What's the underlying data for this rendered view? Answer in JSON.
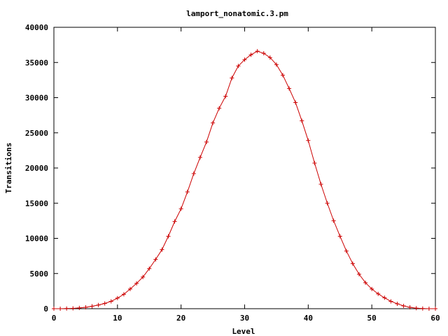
{
  "chart_data": {
    "type": "line",
    "title": "lamport_nonatomic.3.pm",
    "xlabel": "Level",
    "ylabel": "Transitions",
    "xlim": [
      0,
      60
    ],
    "ylim": [
      0,
      40000
    ],
    "x_ticks": [
      0,
      10,
      20,
      30,
      40,
      50,
      60
    ],
    "y_ticks": [
      0,
      5000,
      10000,
      15000,
      20000,
      25000,
      30000,
      35000,
      40000
    ],
    "grid": false,
    "legend": "none",
    "marker": "plus",
    "series_color": "#cc0000",
    "x": [
      0,
      1,
      2,
      3,
      4,
      5,
      6,
      7,
      8,
      9,
      10,
      11,
      12,
      13,
      14,
      15,
      16,
      17,
      18,
      19,
      20,
      21,
      22,
      23,
      24,
      25,
      26,
      27,
      28,
      29,
      30,
      31,
      32,
      33,
      34,
      35,
      36,
      37,
      38,
      39,
      40,
      41,
      42,
      43,
      44,
      45,
      46,
      47,
      48,
      49,
      50,
      51,
      52,
      53,
      54,
      55,
      56,
      57,
      58,
      59,
      60
    ],
    "values": [
      0,
      5,
      20,
      50,
      110,
      200,
      350,
      520,
      750,
      1050,
      1500,
      2050,
      2800,
      3600,
      4500,
      5700,
      7000,
      8400,
      10300,
      12400,
      14200,
      16600,
      19200,
      21500,
      23700,
      26400,
      28500,
      30200,
      32800,
      34500,
      35400,
      36100,
      36600,
      36300,
      35700,
      34700,
      33200,
      31300,
      29300,
      26700,
      23900,
      20700,
      17700,
      15000,
      12500,
      10300,
      8200,
      6400,
      4900,
      3700,
      2800,
      2100,
      1550,
      1050,
      700,
      400,
      200,
      80,
      20,
      5,
      0
    ]
  }
}
